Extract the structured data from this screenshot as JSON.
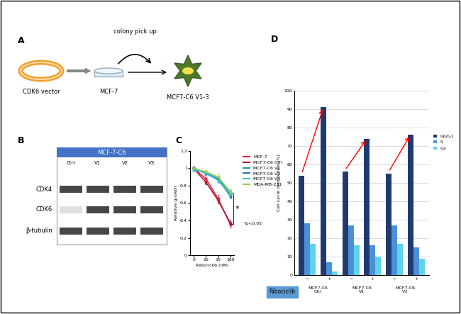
{
  "panel_labels": [
    "A",
    "B",
    "C",
    "D"
  ],
  "panel_A": {
    "steps": [
      "CDK6 vector",
      "MCF-7",
      "MCF7-C6 V1-3"
    ],
    "arrow_label": "colony pick up"
  },
  "panel_B": {
    "header": "MCF-7-C6",
    "lanes": [
      "Ctrl",
      "V1",
      "V2",
      "V3"
    ],
    "rows": [
      "CDK4",
      "CDK6",
      "β-tubulin"
    ]
  },
  "chart_data": [
    {
      "type": "line",
      "categories": [
        "0",
        "10",
        "30",
        "100"
      ],
      "xlabel": "Ribociclib (nM)",
      "ylabel": "Relative growth",
      "ylim": [
        0,
        1.2
      ],
      "yticks": [
        0,
        0.2,
        0.4,
        0.6,
        0.8,
        1,
        1.2
      ],
      "legend": "right",
      "marker": "o",
      "annotations": [
        "*",
        "*p<0.05"
      ],
      "series": [
        {
          "name": "MCF-7",
          "color": "#e8283c",
          "values": [
            1.0,
            0.88,
            0.65,
            0.35
          ],
          "errors": [
            0.02,
            0.02,
            0.04,
            0.03
          ]
        },
        {
          "name": "MCF7-C6 Ctrl",
          "color": "#b0143c",
          "values": [
            1.0,
            0.84,
            0.63,
            0.37
          ],
          "errors": [
            0.02,
            0.02,
            0.03,
            0.03
          ]
        },
        {
          "name": "MCF7-C6 V1",
          "color": "#1f9bb0",
          "values": [
            1.0,
            0.95,
            0.88,
            0.72
          ],
          "errors": [
            0.02,
            0.02,
            0.03,
            0.03
          ]
        },
        {
          "name": "MCF7-C6 V2",
          "color": "#2e75b6",
          "values": [
            1.0,
            0.94,
            0.87,
            0.68
          ],
          "errors": [
            0.02,
            0.02,
            0.03,
            0.03
          ]
        },
        {
          "name": "MCF7-C6 V3",
          "color": "#3fc1d9",
          "values": [
            0.98,
            0.95,
            0.86,
            0.7
          ],
          "errors": [
            0.02,
            0.02,
            0.03,
            0.03
          ]
        },
        {
          "name": "MDA-MB-231",
          "color": "#92d050",
          "values": [
            1.0,
            0.96,
            0.9,
            0.73
          ],
          "errors": [
            0.02,
            0.02,
            0.03,
            0.03
          ]
        }
      ]
    },
    {
      "type": "bar",
      "categories": [
        "−",
        "+",
        "−",
        "+",
        "−",
        "+"
      ],
      "groups": [
        "MCF7-C6 Ctrl",
        "MCF7-C6 V1",
        "MCF7-C6 V3"
      ],
      "xlabel": "Ribociclib",
      "ylabel": "Cell cycle distribution (%)",
      "ylim": [
        0,
        100
      ],
      "yticks": [
        0,
        10,
        20,
        30,
        40,
        50,
        60,
        70,
        80,
        90,
        100
      ],
      "grid": true,
      "legend": "right",
      "series": [
        {
          "name": "G0/G1",
          "color": "#1f3a6e",
          "values": [
            54,
            91,
            56,
            74,
            55,
            76
          ]
        },
        {
          "name": "S",
          "color": "#4a90d9",
          "values": [
            28,
            7,
            27,
            16,
            27,
            15
          ]
        },
        {
          "name": "G2",
          "color": "#5fd3e8",
          "values": [
            17,
            2,
            16,
            10,
            17,
            9
          ]
        }
      ]
    }
  ]
}
